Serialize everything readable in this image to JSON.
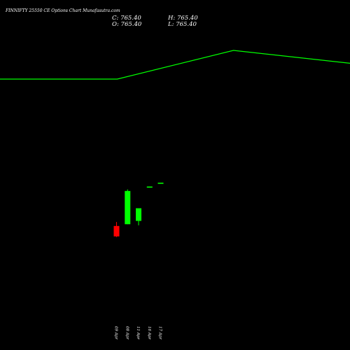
{
  "header": {
    "title": "FINNIFTY 25550  CE Options  Chart Munafasutra.com",
    "close": "C: 765.40",
    "high": "H: 765.40",
    "open": "O: 765.40",
    "low": "L: 765.40"
  },
  "colors": {
    "background": "#000000",
    "up": "#00ff00",
    "down": "#ff0000",
    "text": "#ffffff",
    "line": "#00ff00"
  },
  "chart_data": {
    "type": "candlestick",
    "title": "FINNIFTY 25550  CE Options  Chart Munafasutra.com",
    "categories": [
      "09 Apr",
      "08 Apr",
      "11 Apr",
      "16 Apr",
      "17 Apr"
    ],
    "candles": [
      {
        "date": "09 Apr",
        "open": 570,
        "high": 588,
        "low": 520,
        "close": 523,
        "direction": "down"
      },
      {
        "date": "08 Apr",
        "open": 578,
        "high": 735,
        "low": 578,
        "close": 728,
        "direction": "up"
      },
      {
        "date": "11 Apr",
        "open": 593,
        "high": 650,
        "low": 573,
        "close": 650,
        "direction": "up"
      },
      {
        "date": "16 Apr",
        "open": 748,
        "high": 748,
        "low": 748,
        "close": 748,
        "direction": "flat"
      },
      {
        "date": "17 Apr",
        "open": 765.4,
        "high": 765.4,
        "low": 765.4,
        "close": 765.4,
        "direction": "up"
      }
    ],
    "overlay_line": {
      "x_points": [
        0,
        0.335,
        0.667,
        1.0
      ],
      "y_values": [
        1.0,
        1.0,
        2.05,
        1.58
      ]
    },
    "ylim": [
      0,
      3000
    ],
    "grid": false
  }
}
